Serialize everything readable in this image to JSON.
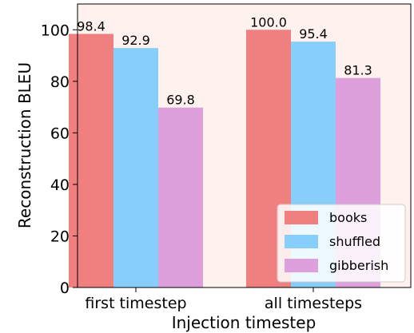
{
  "chart_data": {
    "type": "bar",
    "title": "",
    "xlabel": "Injection timestep",
    "ylabel": "Reconstruction BLEU",
    "categories": [
      "first timestep",
      "all timesteps"
    ],
    "series": [
      {
        "name": "books",
        "values": [
          98.4,
          100.0
        ],
        "value_labels": [
          "98.4",
          "100.0"
        ],
        "color": "#f08080"
      },
      {
        "name": "shuffled",
        "values": [
          92.9,
          95.4
        ],
        "value_labels": [
          "92.9",
          "95.4"
        ],
        "color": "#87cefa"
      },
      {
        "name": "gibberish",
        "values": [
          69.8,
          81.3
        ],
        "value_labels": [
          "69.8",
          "81.3"
        ],
        "color": "#dda0dd"
      }
    ],
    "ylim": [
      0,
      110
    ],
    "yticks": [
      0,
      20,
      40,
      60,
      80,
      100
    ],
    "ytick_labels": [
      "0",
      "20",
      "40",
      "60",
      "80",
      "100"
    ],
    "grid": false,
    "legend_position": "bottom-right",
    "plot_background": "#fff2ee"
  }
}
